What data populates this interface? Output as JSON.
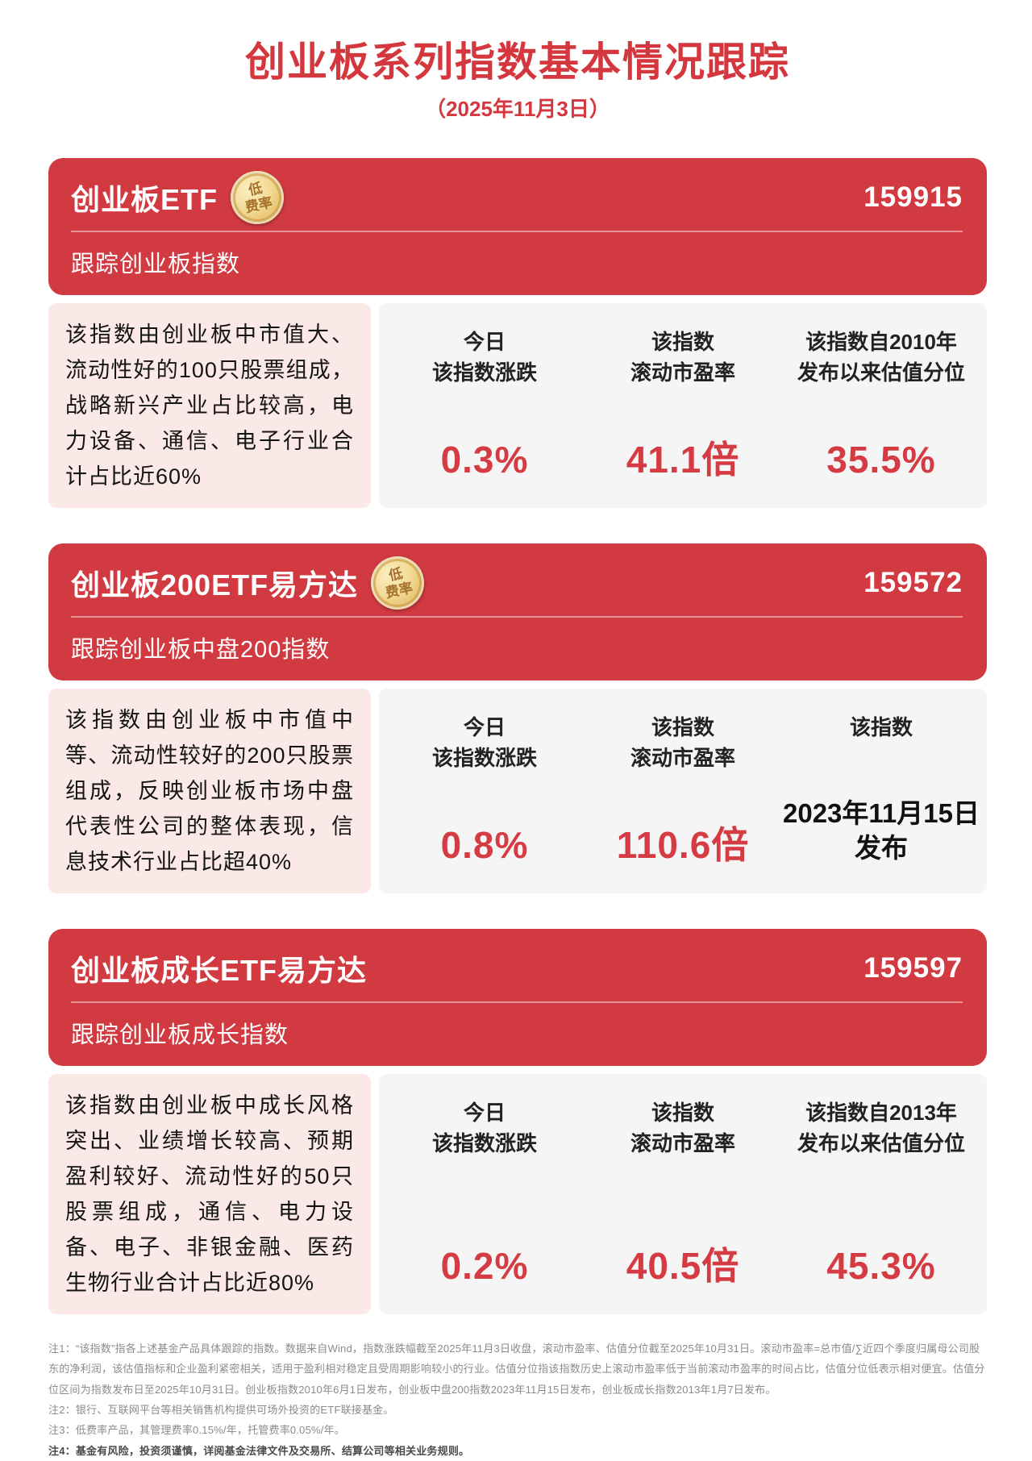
{
  "page": {
    "title": "创业板系列指数基本情况跟踪",
    "date": "（2025年11月3日）"
  },
  "badge": {
    "line1": "低",
    "line2": "费率"
  },
  "colors": {
    "accent_red": "#d23a41",
    "value_red": "#d43b42",
    "desc_pink": "#fbe9e8",
    "stats_gray": "#f6f5f5",
    "badge_gold": "#e5c06a"
  },
  "cards": [
    {
      "name": "创业板ETF",
      "code": "159915",
      "track": "跟踪创业板指数",
      "description": "该指数由创业板中市值大、流动性好的100只股票组成，战略新兴产业占比较高，电力设备、通信、电子行业合计占比近60%",
      "stats": [
        {
          "label_line1": "今日",
          "label_line2": "该指数涨跌",
          "value": "0.3%"
        },
        {
          "label_line1": "该指数",
          "label_line2": "滚动市盈率",
          "value": "41.1倍"
        },
        {
          "label_line1": "该指数自2010年",
          "label_line2": "发布以来估值分位",
          "value": "35.5%"
        }
      ]
    },
    {
      "name": "创业板200ETF易方达",
      "code": "159572",
      "track": "跟踪创业板中盘200指数",
      "description": "该指数由创业板中市值中等、流动性较好的200只股票组成，反映创业板市场中盘代表性公司的整体表现，信息技术行业占比超40%",
      "stats": [
        {
          "label_line1": "今日",
          "label_line2": "该指数涨跌",
          "value": "0.8%"
        },
        {
          "label_line1": "该指数",
          "label_line2": "滚动市盈率",
          "value": "110.6倍"
        },
        {
          "label_line1": "该指数",
          "label_line2": "",
          "value": "2023年11月15日",
          "value2": "发布"
        }
      ]
    },
    {
      "name": "创业板成长ETF易方达",
      "code": "159597",
      "track": "跟踪创业板成长指数",
      "description": "该指数由创业板中成长风格突出、业绩增长较高、预期盈利较好、流动性好的50只股票组成，通信、电力设备、电子、非银金融、医药生物行业合计占比近80%",
      "stats": [
        {
          "label_line1": "今日",
          "label_line2": "该指数涨跌",
          "value": "0.2%"
        },
        {
          "label_line1": "该指数",
          "label_line2": "滚动市盈率",
          "value": "40.5倍"
        },
        {
          "label_line1": "该指数自2013年",
          "label_line2": "发布以来估值分位",
          "value": "45.3%"
        }
      ]
    }
  ],
  "notes": [
    {
      "text": "注1：“该指数”指各上述基金产品具体跟踪的指数。数据来自Wind，指数涨跌幅截至2025年11月3日收盘，滚动市盈率、估值分位截至2025年10月31日。滚动市盈率=总市值/∑近四个季度归属母公司股东的净利润，该估值指标和企业盈利紧密相关，适用于盈利相对稳定且受周期影响较小的行业。估值分位指该指数历史上滚动市盈率低于当前滚动市盈率的时间占比，估值分位低表示相对便宜。估值分位区间为指数发布日至2025年10月31日。创业板指数2010年6月1日发布，创业板中盘200指数2023年11月15日发布，创业板成长指数2013年1月7日发布。"
    },
    {
      "text": "注2：银行、互联网平台等相关销售机构提供可场外投资的ETF联接基金。"
    },
    {
      "text": "注3：低费率产品，其管理费率0.15%/年，托管费率0.05%/年。"
    },
    {
      "text": "注4：基金有风险，投资须谨慎，详阅基金法律文件及交易所、结算公司等相关业务规则。"
    }
  ]
}
